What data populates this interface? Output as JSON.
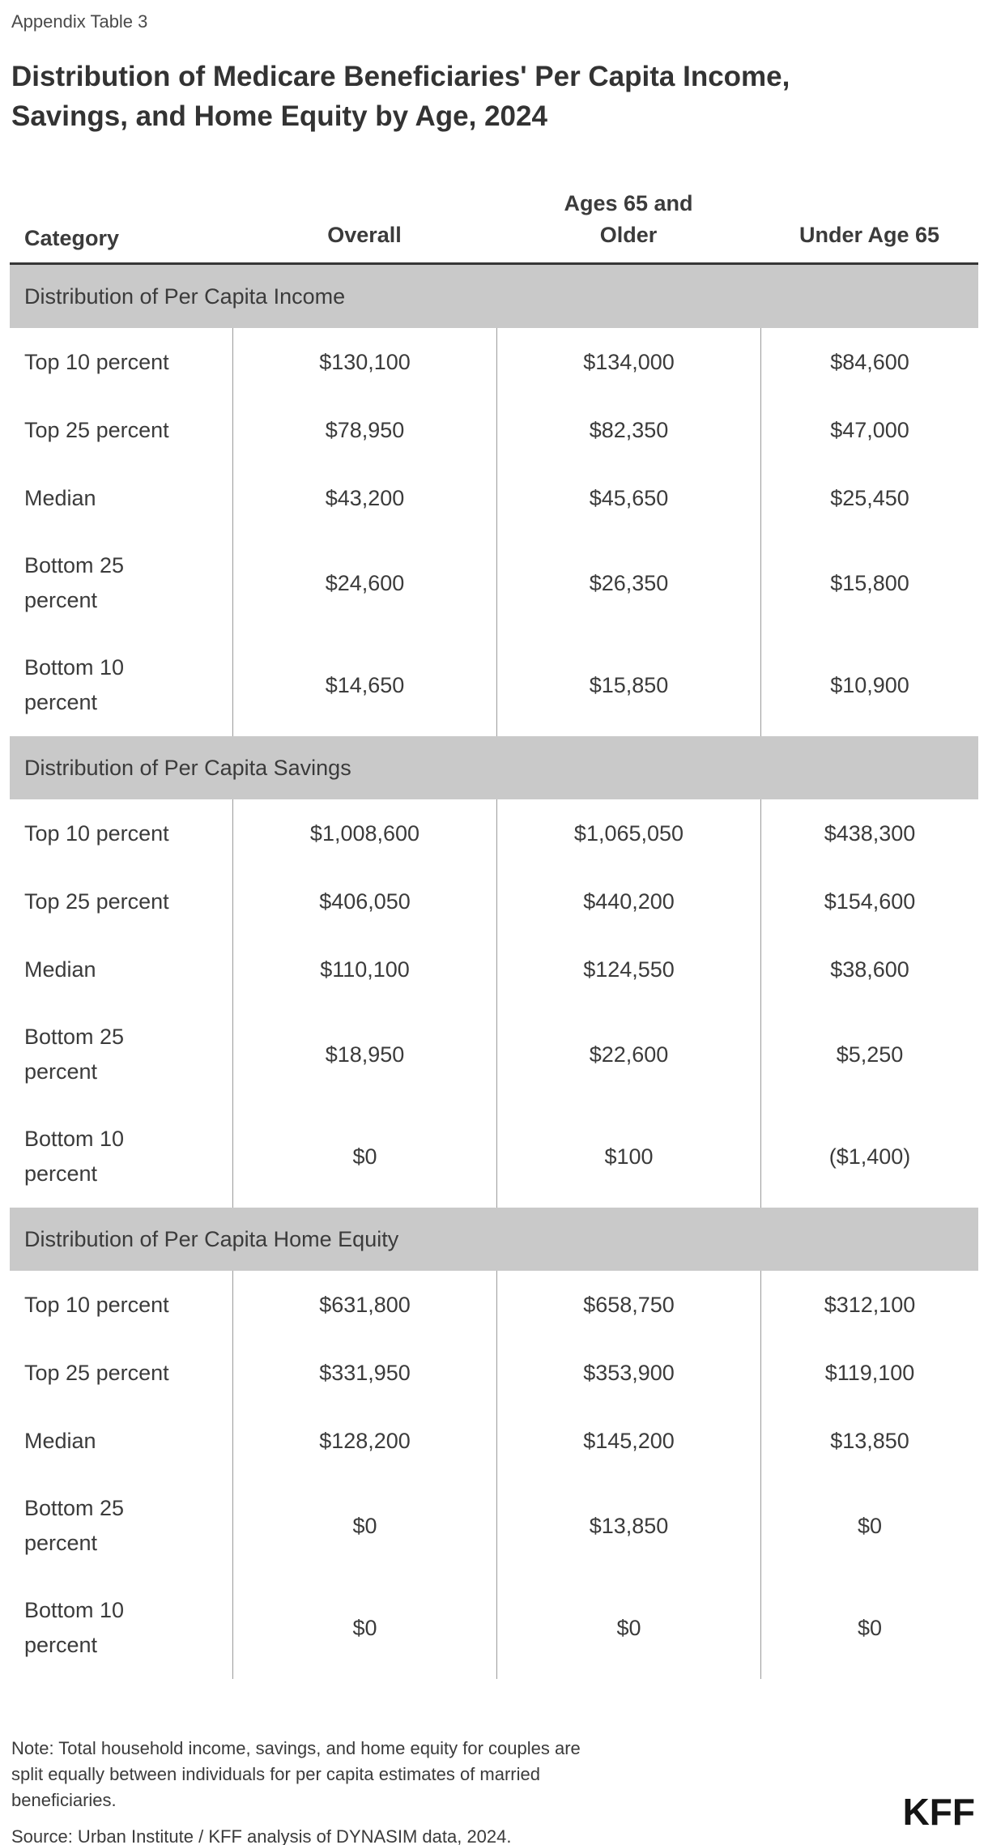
{
  "appendix_label": "Appendix Table 3",
  "title_lines": [
    "Distribution of Medicare Beneficiaries' Per Capita Income,",
    "Savings, and Home Equity by Age, 2024"
  ],
  "colors": {
    "section_band_bg": "#c9c9c9",
    "header_rule": "#363636",
    "column_divider": "#9b9b9b",
    "logo_black": "#151515"
  },
  "footer": {
    "note": "Note: Total household income, savings, and home equity for couples are split equally between individuals for per capita estimates of married beneficiaries.",
    "source": "Source: Urban Institute / KFF analysis of DYNASIM data, 2024.",
    "logo_text": "KFF"
  },
  "chart_data": {
    "type": "table",
    "title": "Distribution of Medicare Beneficiaries' Per Capita Income, Savings, and Home Equity by Age, 2024",
    "columns": [
      "Category",
      "Overall",
      "Ages 65 and Older",
      "Under Age 65"
    ],
    "sections": [
      {
        "label": "Distribution of Per Capita Income",
        "rows": [
          [
            "Top 10 percent",
            "$130,100",
            "$134,000",
            "$84,600"
          ],
          [
            "Top 25 percent",
            "$78,950",
            "$82,350",
            "$47,000"
          ],
          [
            "Median",
            "$43,200",
            "$45,650",
            "$25,450"
          ],
          [
            "Bottom 25 percent",
            "$24,600",
            "$26,350",
            "$15,800"
          ],
          [
            "Bottom 10 percent",
            "$14,650",
            "$15,850",
            "$10,900"
          ]
        ]
      },
      {
        "label": "Distribution of Per Capita Savings",
        "rows": [
          [
            "Top 10 percent",
            "$1,008,600",
            "$1,065,050",
            "$438,300"
          ],
          [
            "Top 25 percent",
            "$406,050",
            "$440,200",
            "$154,600"
          ],
          [
            "Median",
            "$110,100",
            "$124,550",
            "$38,600"
          ],
          [
            "Bottom 25 percent",
            "$18,950",
            "$22,600",
            "$5,250"
          ],
          [
            "Bottom 10 percent",
            "$0",
            "$100",
            "($1,400)"
          ]
        ]
      },
      {
        "label": "Distribution of Per Capita Home Equity",
        "rows": [
          [
            "Top 10 percent",
            "$631,800",
            "$658,750",
            "$312,100"
          ],
          [
            "Top 25 percent",
            "$331,950",
            "$353,900",
            "$119,100"
          ],
          [
            "Median",
            "$128,200",
            "$145,200",
            "$13,850"
          ],
          [
            "Bottom 25 percent",
            "$0",
            "$13,850",
            "$0"
          ],
          [
            "Bottom 10 percent",
            "$0",
            "$0",
            "$0"
          ]
        ]
      }
    ],
    "note": "Note: Total household income, savings, and home equity for couples are split equally between individuals for per capita estimates of married beneficiaries.",
    "source": "Source: Urban Institute / KFF analysis of DYNASIM data, 2024."
  }
}
